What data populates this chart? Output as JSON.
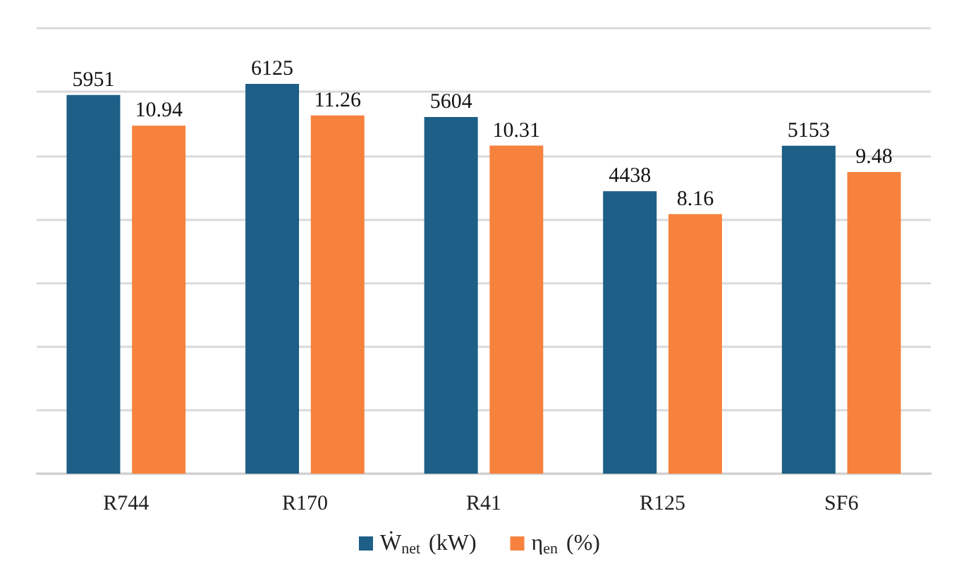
{
  "chart_data": {
    "type": "bar",
    "categories": [
      "R744",
      "R170",
      "R41",
      "R125",
      "SF6"
    ],
    "series": [
      {
        "name": "Ẇ$_{net}$ (kW)",
        "color": "#1d5f86",
        "values": [
          5951,
          6125,
          5604,
          4438,
          5153
        ]
      },
      {
        "name": "η$_{en}$ (%)",
        "color": "#f6823e",
        "values": [
          10.94,
          11.26,
          10.31,
          8.16,
          9.48
        ],
        "axis": "y2"
      }
    ],
    "ylim": [
      0,
      7000
    ],
    "yticks": [
      {
        "value": 0,
        "label": null
      },
      {
        "value": 1000,
        "label": null
      },
      {
        "value": 2000,
        "label": null
      },
      {
        "value": 3000,
        "label": null
      },
      {
        "value": 4000,
        "label": null
      },
      {
        "value": 5000,
        "label": null
      },
      {
        "value": 6000,
        "label": null
      },
      {
        "value": 7000,
        "label": null
      }
    ],
    "y2lim": [
      0,
      14
    ],
    "tick_labels": "x",
    "grid": "y",
    "data_labels": true,
    "legend": "bottom"
  }
}
